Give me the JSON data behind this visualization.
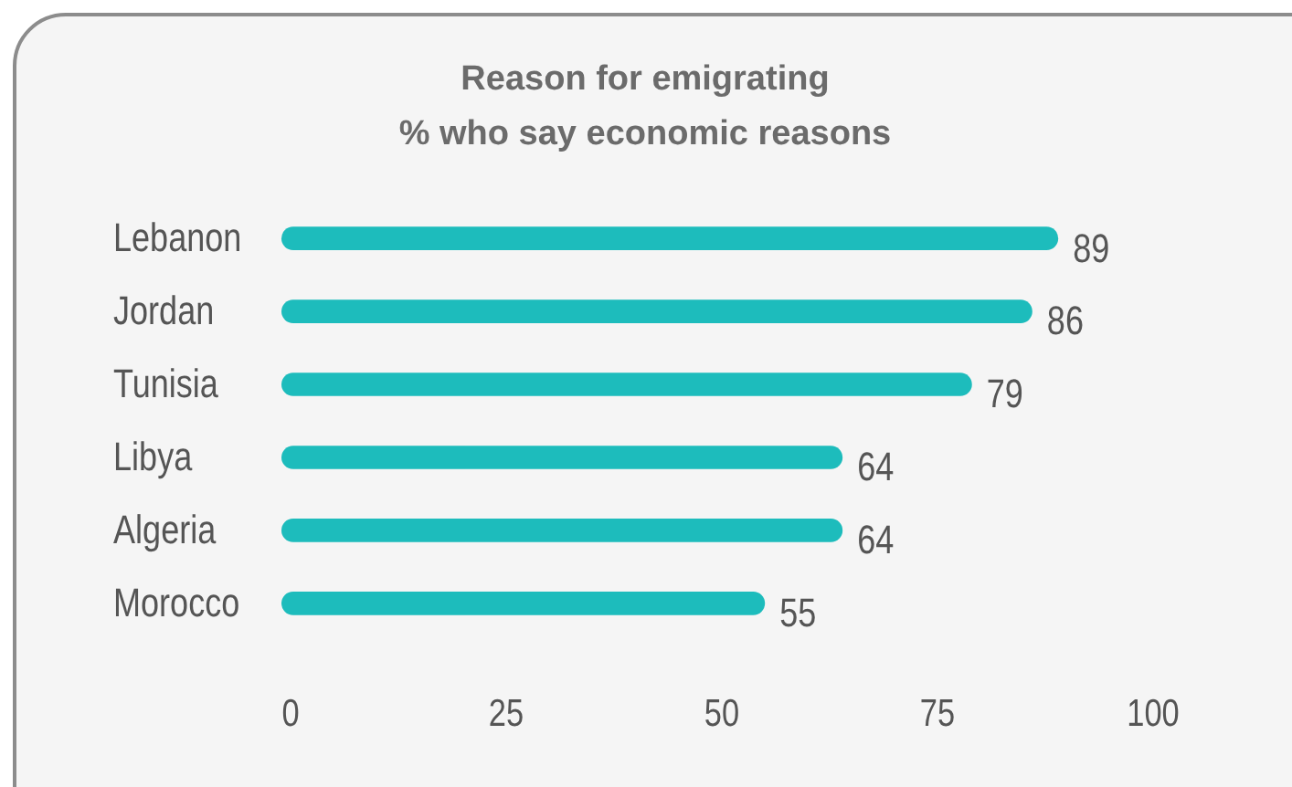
{
  "chart_data": {
    "type": "bar",
    "orientation": "horizontal",
    "title": "Reason for emigrating",
    "subtitle": "% who say economic reasons",
    "categories": [
      "Lebanon",
      "Jordan",
      "Tunisia",
      "Libya",
      "Algeria",
      "Morocco"
    ],
    "values": [
      89,
      86,
      79,
      64,
      64,
      55
    ],
    "color": "#1dbcbc",
    "xlim": [
      0,
      100
    ],
    "xticks": [
      0,
      25,
      50,
      75,
      100
    ],
    "grid": false,
    "data_labels": true
  }
}
